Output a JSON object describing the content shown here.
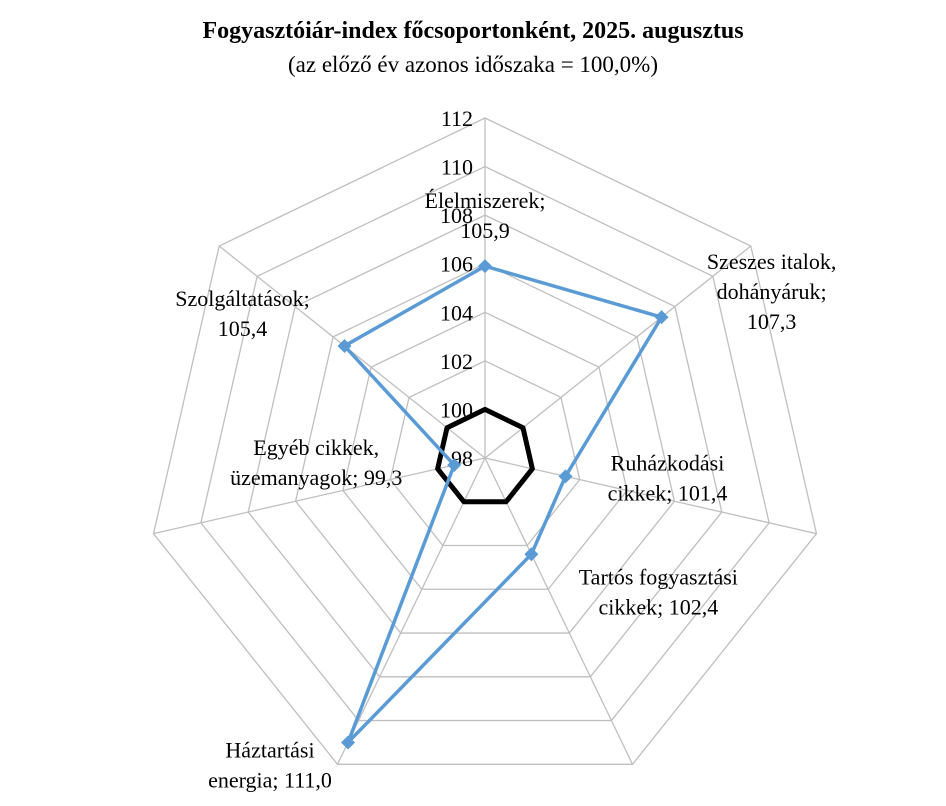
{
  "chart_data": {
    "type": "radar",
    "title": "Fogyasztóiár-index főcsoportonként, 2025. augusztus",
    "subtitle": "(az előző év azonos időszaka = 100,0%)",
    "rlim": [
      98,
      112
    ],
    "ticks": [
      98,
      100,
      102,
      104,
      106,
      108,
      110,
      112
    ],
    "tick_labels": [
      "98",
      "100",
      "102",
      "104",
      "106",
      "108",
      "110",
      "112"
    ],
    "reference_value": 100,
    "categories": [
      "Élelmiszerek",
      "Szeszes italok, dohányáruk",
      "Ruházkodási cikkek",
      "Tartós fogyasztási cikkek",
      "Háztartási energia",
      "Egyéb cikkek, üzemanyagok",
      "Szolgáltatások"
    ],
    "values": [
      105.9,
      107.3,
      101.4,
      102.4,
      111.0,
      99.3,
      105.4
    ],
    "point_labels": [
      [
        "Élelmiszerek;",
        "105,9"
      ],
      [
        "Szeszes italok,",
        "dohányáruk;",
        "107,3"
      ],
      [
        "Ruházkodási",
        "cikkek;  101,4"
      ],
      [
        "Tartós fogyasztási",
        "cikkek;  102,4"
      ],
      [
        "Háztartási",
        "energia;  111,0"
      ],
      [
        "Egyéb cikkek,",
        "üzemanyagok;  99,3"
      ],
      [
        "Szolgáltatások;",
        "105,4"
      ]
    ],
    "colors": {
      "series": "#5b9bd5",
      "reference": "#000000",
      "grid": "#bfbfbf"
    }
  }
}
